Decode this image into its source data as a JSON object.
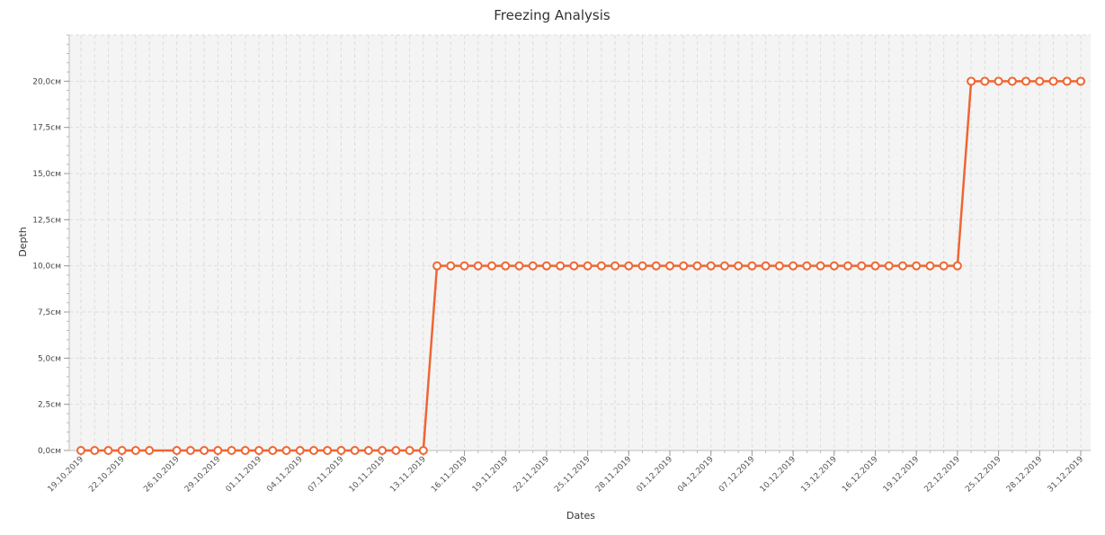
{
  "chart_data": {
    "type": "line",
    "title": "Freezing Analysis",
    "xlabel": "Dates",
    "ylabel": "Depth",
    "ylim": [
      0,
      22.5
    ],
    "y_unit": "см",
    "y_tick_labels": [
      "0,0см",
      "2,5см",
      "5,0см",
      "7,5см",
      "10,0см",
      "12,5см",
      "15,0см",
      "17,5см",
      "20,0см"
    ],
    "x_tick_labels": [
      "19.10.2019",
      "22.10.2019",
      "26.10.2019",
      "29.10.2019",
      "01.11.2019",
      "04.11.2019",
      "07.11.2019",
      "10.11.2019",
      "13.11.2019",
      "16.11.2019",
      "19.11.2019",
      "22.11.2019",
      "25.11.2019",
      "28.11.2019",
      "01.12.2019",
      "04.12.2019",
      "07.12.2019",
      "10.12.2019",
      "13.12.2019",
      "16.12.2019",
      "19.12.2019",
      "22.12.2019",
      "25.12.2019",
      "28.12.2019",
      "31.12.2019"
    ],
    "grid": true,
    "legend": "none",
    "series": [
      {
        "color": "#ee6633",
        "points": [
          {
            "x": "19.10.2019",
            "y": 0
          },
          {
            "x": "20.10.2019",
            "y": 0
          },
          {
            "x": "21.10.2019",
            "y": 0
          },
          {
            "x": "22.10.2019",
            "y": 0
          },
          {
            "x": "23.10.2019",
            "y": 0
          },
          {
            "x": "24.10.2019",
            "y": 0
          },
          {
            "x": "26.10.2019",
            "y": 0
          },
          {
            "x": "27.10.2019",
            "y": 0
          },
          {
            "x": "28.10.2019",
            "y": 0
          },
          {
            "x": "29.10.2019",
            "y": 0
          },
          {
            "x": "30.10.2019",
            "y": 0
          },
          {
            "x": "31.10.2019",
            "y": 0
          },
          {
            "x": "01.11.2019",
            "y": 0
          },
          {
            "x": "02.11.2019",
            "y": 0
          },
          {
            "x": "03.11.2019",
            "y": 0
          },
          {
            "x": "04.11.2019",
            "y": 0
          },
          {
            "x": "05.11.2019",
            "y": 0
          },
          {
            "x": "06.11.2019",
            "y": 0
          },
          {
            "x": "07.11.2019",
            "y": 0
          },
          {
            "x": "08.11.2019",
            "y": 0
          },
          {
            "x": "09.11.2019",
            "y": 0
          },
          {
            "x": "10.11.2019",
            "y": 0
          },
          {
            "x": "11.11.2019",
            "y": 0
          },
          {
            "x": "12.11.2019",
            "y": 0
          },
          {
            "x": "13.11.2019",
            "y": 0
          },
          {
            "x": "14.11.2019",
            "y": 10
          },
          {
            "x": "15.11.2019",
            "y": 10
          },
          {
            "x": "16.11.2019",
            "y": 10
          },
          {
            "x": "17.11.2019",
            "y": 10
          },
          {
            "x": "18.11.2019",
            "y": 10
          },
          {
            "x": "19.11.2019",
            "y": 10
          },
          {
            "x": "20.11.2019",
            "y": 10
          },
          {
            "x": "21.11.2019",
            "y": 10
          },
          {
            "x": "22.11.2019",
            "y": 10
          },
          {
            "x": "23.11.2019",
            "y": 10
          },
          {
            "x": "24.11.2019",
            "y": 10
          },
          {
            "x": "25.11.2019",
            "y": 10
          },
          {
            "x": "26.11.2019",
            "y": 10
          },
          {
            "x": "27.11.2019",
            "y": 10
          },
          {
            "x": "28.11.2019",
            "y": 10
          },
          {
            "x": "29.11.2019",
            "y": 10
          },
          {
            "x": "30.11.2019",
            "y": 10
          },
          {
            "x": "01.12.2019",
            "y": 10
          },
          {
            "x": "02.12.2019",
            "y": 10
          },
          {
            "x": "03.12.2019",
            "y": 10
          },
          {
            "x": "04.12.2019",
            "y": 10
          },
          {
            "x": "05.12.2019",
            "y": 10
          },
          {
            "x": "06.12.2019",
            "y": 10
          },
          {
            "x": "07.12.2019",
            "y": 10
          },
          {
            "x": "08.12.2019",
            "y": 10
          },
          {
            "x": "09.12.2019",
            "y": 10
          },
          {
            "x": "10.12.2019",
            "y": 10
          },
          {
            "x": "11.12.2019",
            "y": 10
          },
          {
            "x": "12.12.2019",
            "y": 10
          },
          {
            "x": "13.12.2019",
            "y": 10
          },
          {
            "x": "14.12.2019",
            "y": 10
          },
          {
            "x": "15.12.2019",
            "y": 10
          },
          {
            "x": "16.12.2019",
            "y": 10
          },
          {
            "x": "17.12.2019",
            "y": 10
          },
          {
            "x": "18.12.2019",
            "y": 10
          },
          {
            "x": "19.12.2019",
            "y": 10
          },
          {
            "x": "20.12.2019",
            "y": 10
          },
          {
            "x": "21.12.2019",
            "y": 10
          },
          {
            "x": "22.12.2019",
            "y": 10
          },
          {
            "x": "23.12.2019",
            "y": 20
          },
          {
            "x": "24.12.2019",
            "y": 20
          },
          {
            "x": "25.12.2019",
            "y": 20
          },
          {
            "x": "26.12.2019",
            "y": 20
          },
          {
            "x": "27.12.2019",
            "y": 20
          },
          {
            "x": "28.12.2019",
            "y": 20
          },
          {
            "x": "29.12.2019",
            "y": 20
          },
          {
            "x": "30.12.2019",
            "y": 20
          },
          {
            "x": "31.12.2019",
            "y": 20
          }
        ]
      }
    ]
  }
}
